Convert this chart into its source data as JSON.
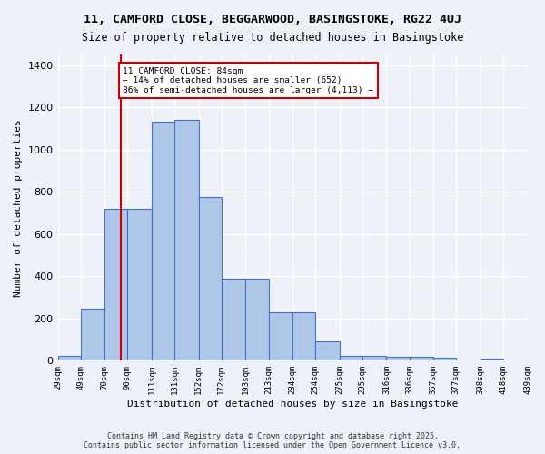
{
  "title1": "11, CAMFORD CLOSE, BEGGARWOOD, BASINGSTOKE, RG22 4UJ",
  "title2": "Size of property relative to detached houses in Basingstoke",
  "xlabel": "Distribution of detached houses by size in Basingstoke",
  "ylabel": "Number of detached properties",
  "bar_left_edges": [
    29,
    49,
    70,
    90,
    111,
    131,
    152,
    172,
    193,
    213,
    234,
    254,
    275,
    295,
    316,
    336,
    357,
    377,
    398,
    418
  ],
  "bar_right_edges": [
    49,
    70,
    90,
    111,
    131,
    152,
    172,
    193,
    213,
    234,
    254,
    275,
    295,
    316,
    336,
    357,
    377,
    398,
    418,
    439
  ],
  "bar_heights": [
    25,
    245,
    720,
    720,
    1130,
    1140,
    775,
    390,
    390,
    230,
    230,
    90,
    25,
    25,
    20,
    20,
    15,
    0,
    10,
    0
  ],
  "bar_color": "#aec6e8",
  "bar_edge_color": "#4472c4",
  "vline_x": 84,
  "vline_color": "#cc0000",
  "annotation_title": "11 CAMFORD CLOSE: 84sqm",
  "annotation_line1": "← 14% of detached houses are smaller (652)",
  "annotation_line2": "86% of semi-detached houses are larger (4,113) →",
  "annotation_box_color": "#ffffff",
  "annotation_box_edgecolor": "#cc0000",
  "bg_color": "#eef2f8",
  "grid_color": "#ffffff",
  "footer1": "Contains HM Land Registry data © Crown copyright and database right 2025.",
  "footer2": "Contains public sector information licensed under the Open Government Licence v3.0.",
  "ylim": [
    0,
    1450
  ],
  "xlim": [
    29,
    439
  ],
  "tick_positions": [
    29,
    49,
    70,
    90,
    111,
    131,
    152,
    172,
    193,
    213,
    234,
    254,
    275,
    295,
    316,
    336,
    357,
    377,
    398,
    418,
    439
  ],
  "tick_labels": [
    "29sqm",
    "49sqm",
    "70sqm",
    "90sqm",
    "111sqm",
    "131sqm",
    "152sqm",
    "172sqm",
    "193sqm",
    "213sqm",
    "234sqm",
    "254sqm",
    "275sqm",
    "295sqm",
    "316sqm",
    "336sqm",
    "357sqm",
    "377sqm",
    "398sqm",
    "418sqm",
    "439sqm"
  ]
}
